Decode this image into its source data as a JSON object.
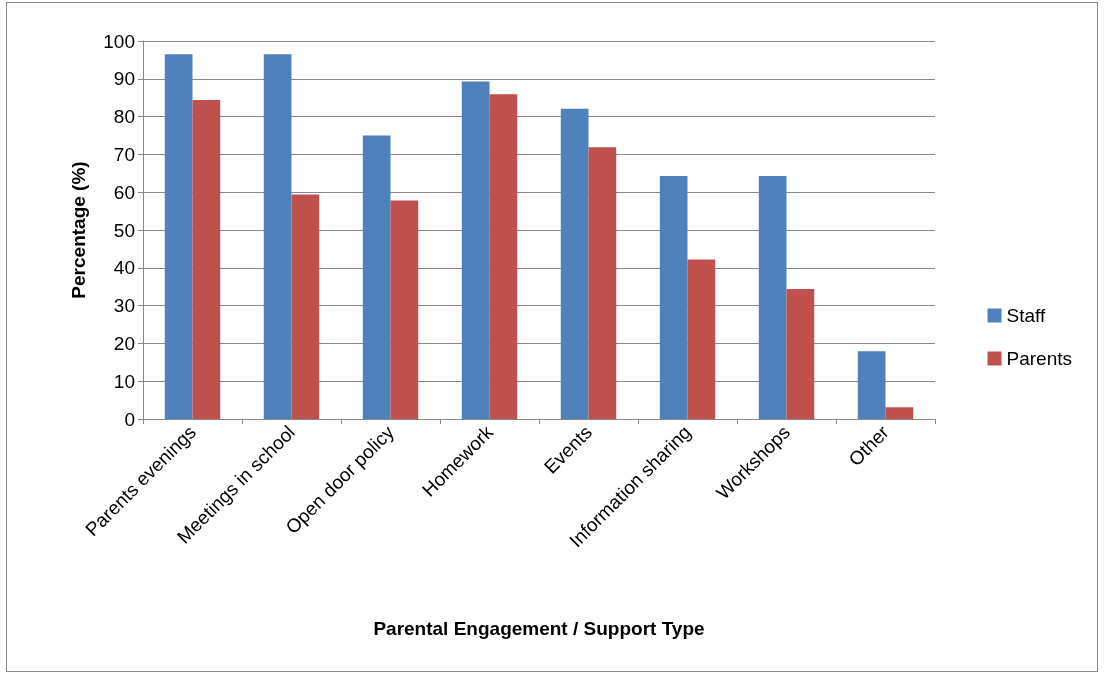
{
  "chart_data": {
    "type": "bar",
    "categories": [
      "Parents evenings",
      "Meetings in school",
      "Open door policy",
      "Homework",
      "Events",
      "Information sharing",
      "Workshops",
      "Other"
    ],
    "series": [
      {
        "name": "Staff",
        "color": "#4f81bd",
        "values": [
          96.5,
          96.5,
          75,
          89.3,
          82.1,
          64.3,
          64.3,
          17.9
        ]
      },
      {
        "name": "Parents",
        "color": "#c0504d",
        "values": [
          84.4,
          59.4,
          57.8,
          85.9,
          71.9,
          42.2,
          34.4,
          3.1
        ]
      }
    ],
    "xlabel": "Parental Engagement / Support Type",
    "ylabel": "Percentage (%)",
    "ylim": [
      0,
      100
    ],
    "yticks": [
      0,
      10,
      20,
      30,
      40,
      50,
      60,
      70,
      80,
      90,
      100
    ],
    "grid": "y",
    "legend": "right"
  }
}
